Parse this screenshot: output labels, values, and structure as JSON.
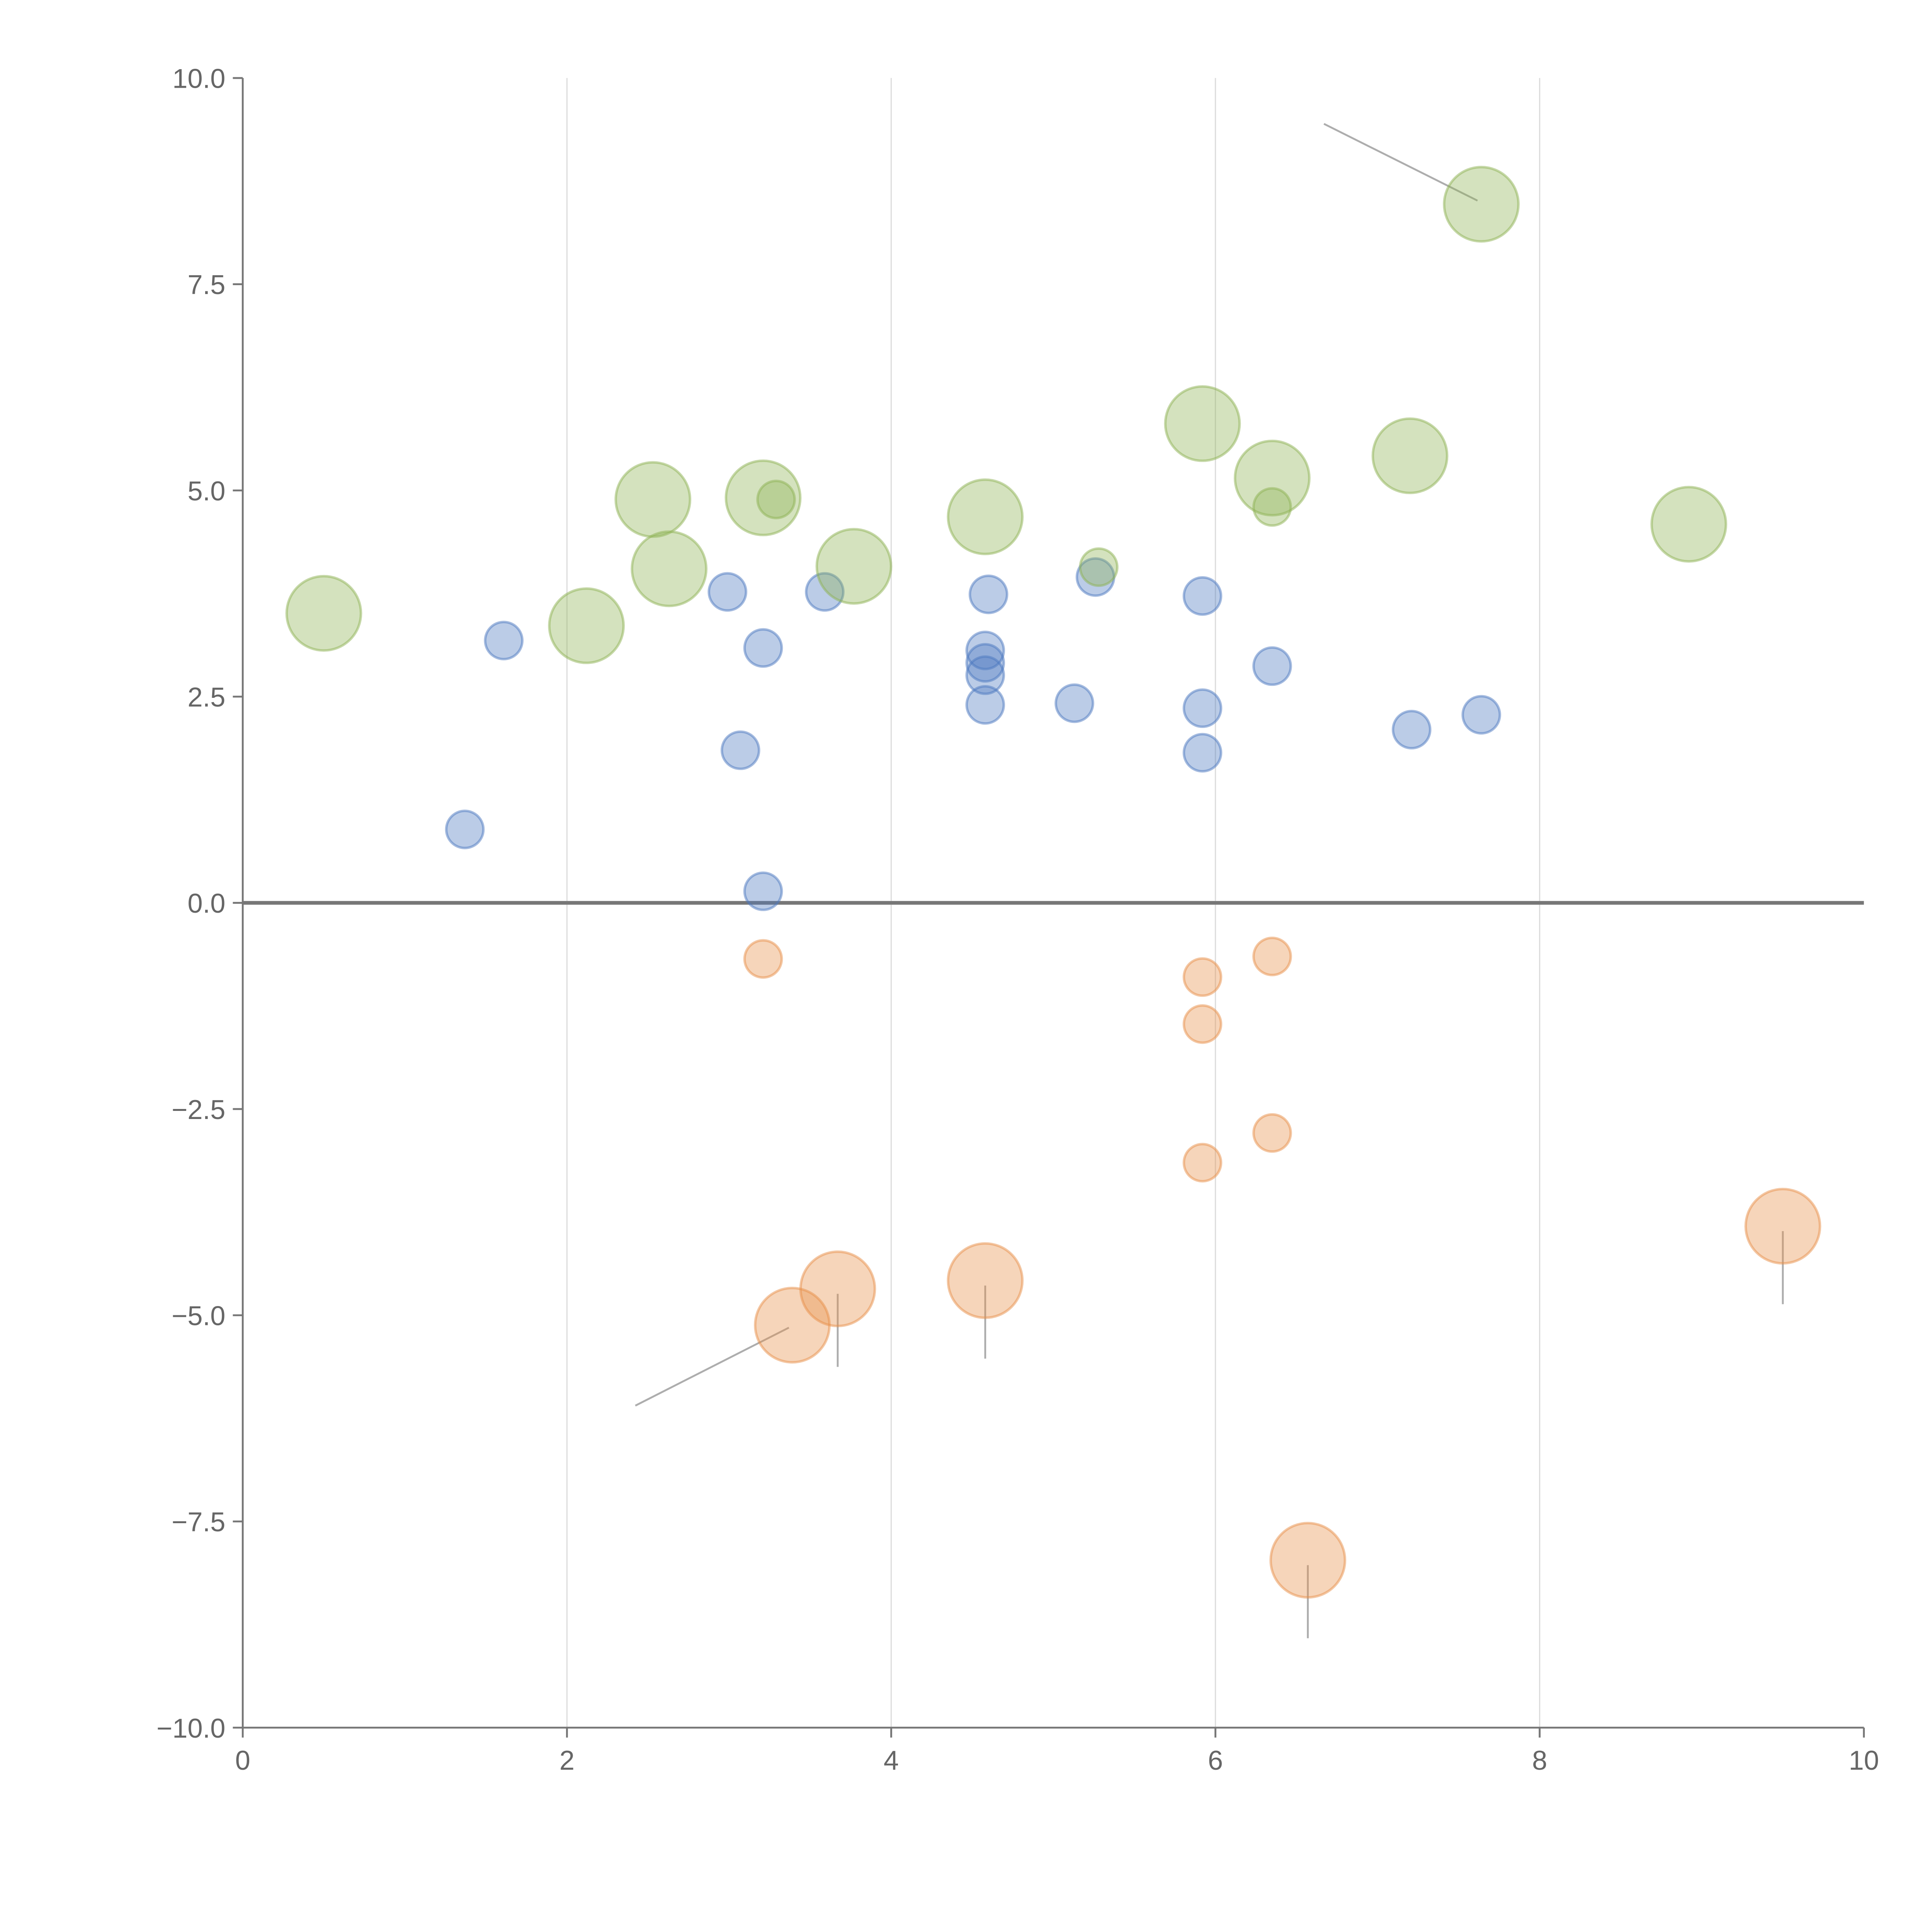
{
  "chart_data": {
    "type": "scatter",
    "title": "",
    "xlabel": "",
    "ylabel": "",
    "xlim": [
      0,
      10
    ],
    "ylim": [
      -10,
      10
    ],
    "grid": "vertical",
    "legend": "none",
    "x_ticks": [
      "0",
      "2",
      "4",
      "6",
      "8",
      "10"
    ],
    "x_tick_values": [
      0,
      2,
      4,
      6,
      8,
      10
    ],
    "y_ticks": [
      "10.0",
      "7.5",
      "5.0",
      "2.5",
      "0.0",
      "−2.5",
      "−5.0",
      "−7.5",
      "−10.0"
    ],
    "y_tick_values": [
      10,
      7.5,
      5,
      2.5,
      0,
      -2.5,
      -5,
      -7.5,
      -10
    ],
    "series": [
      {
        "name": "blue",
        "color": "#4c78c0",
        "points": [
          {
            "x": 1.37,
            "y": 0.89,
            "size": 1
          },
          {
            "x": 1.61,
            "y": 3.18,
            "size": 1
          },
          {
            "x": 2.99,
            "y": 3.77,
            "size": 1
          },
          {
            "x": 3.21,
            "y": 3.09,
            "size": 1
          },
          {
            "x": 3.07,
            "y": 1.85,
            "size": 1
          },
          {
            "x": 3.21,
            "y": 0.14,
            "size": 1
          },
          {
            "x": 3.59,
            "y": 3.77,
            "size": 1
          },
          {
            "x": 4.6,
            "y": 3.74,
            "size": 1
          },
          {
            "x": 4.58,
            "y": 3.06,
            "size": 1
          },
          {
            "x": 4.58,
            "y": 2.91,
            "size": 1
          },
          {
            "x": 4.58,
            "y": 2.76,
            "size": 1
          },
          {
            "x": 4.58,
            "y": 2.4,
            "size": 1
          },
          {
            "x": 5.13,
            "y": 2.42,
            "size": 1
          },
          {
            "x": 5.26,
            "y": 3.95,
            "size": 1
          },
          {
            "x": 5.92,
            "y": 3.72,
            "size": 1
          },
          {
            "x": 5.92,
            "y": 2.36,
            "size": 1
          },
          {
            "x": 5.92,
            "y": 1.82,
            "size": 1
          },
          {
            "x": 6.35,
            "y": 2.87,
            "size": 1
          },
          {
            "x": 7.21,
            "y": 2.1,
            "size": 1
          },
          {
            "x": 7.64,
            "y": 2.28,
            "size": 1
          }
        ]
      },
      {
        "name": "green",
        "color": "#8db253",
        "points": [
          {
            "x": 0.5,
            "y": 3.51,
            "size": 4
          },
          {
            "x": 2.12,
            "y": 3.36,
            "size": 4
          },
          {
            "x": 2.53,
            "y": 4.89,
            "size": 4
          },
          {
            "x": 2.63,
            "y": 4.05,
            "size": 4
          },
          {
            "x": 3.21,
            "y": 4.91,
            "size": 4
          },
          {
            "x": 3.77,
            "y": 4.08,
            "size": 4
          },
          {
            "x": 4.58,
            "y": 4.68,
            "size": 4
          },
          {
            "x": 5.92,
            "y": 5.81,
            "size": 4
          },
          {
            "x": 6.35,
            "y": 5.15,
            "size": 4
          },
          {
            "x": 7.2,
            "y": 5.42,
            "size": 4
          },
          {
            "x": 7.64,
            "y": 8.47,
            "size": 4
          },
          {
            "x": 8.92,
            "y": 4.59,
            "size": 4
          },
          {
            "x": 3.29,
            "y": 4.89,
            "size": 1
          },
          {
            "x": 6.35,
            "y": 4.8,
            "size": 1
          },
          {
            "x": 5.28,
            "y": 4.07,
            "size": 1
          }
        ]
      },
      {
        "name": "orange",
        "color": "#e8904a",
        "points": [
          {
            "x": 3.21,
            "y": -0.68,
            "size": 1
          },
          {
            "x": 5.92,
            "y": -0.9,
            "size": 1
          },
          {
            "x": 5.92,
            "y": -1.47,
            "size": 1
          },
          {
            "x": 6.35,
            "y": -0.65,
            "size": 1
          },
          {
            "x": 6.35,
            "y": -2.79,
            "size": 1
          },
          {
            "x": 5.92,
            "y": -3.15,
            "size": 1
          },
          {
            "x": 3.39,
            "y": -5.12,
            "size": 4
          },
          {
            "x": 3.67,
            "y": -4.68,
            "size": 4
          },
          {
            "x": 4.58,
            "y": -4.58,
            "size": 4
          },
          {
            "x": 9.5,
            "y": -3.92,
            "size": 4
          },
          {
            "x": 6.57,
            "y": -7.97,
            "size": 4
          }
        ]
      }
    ]
  }
}
